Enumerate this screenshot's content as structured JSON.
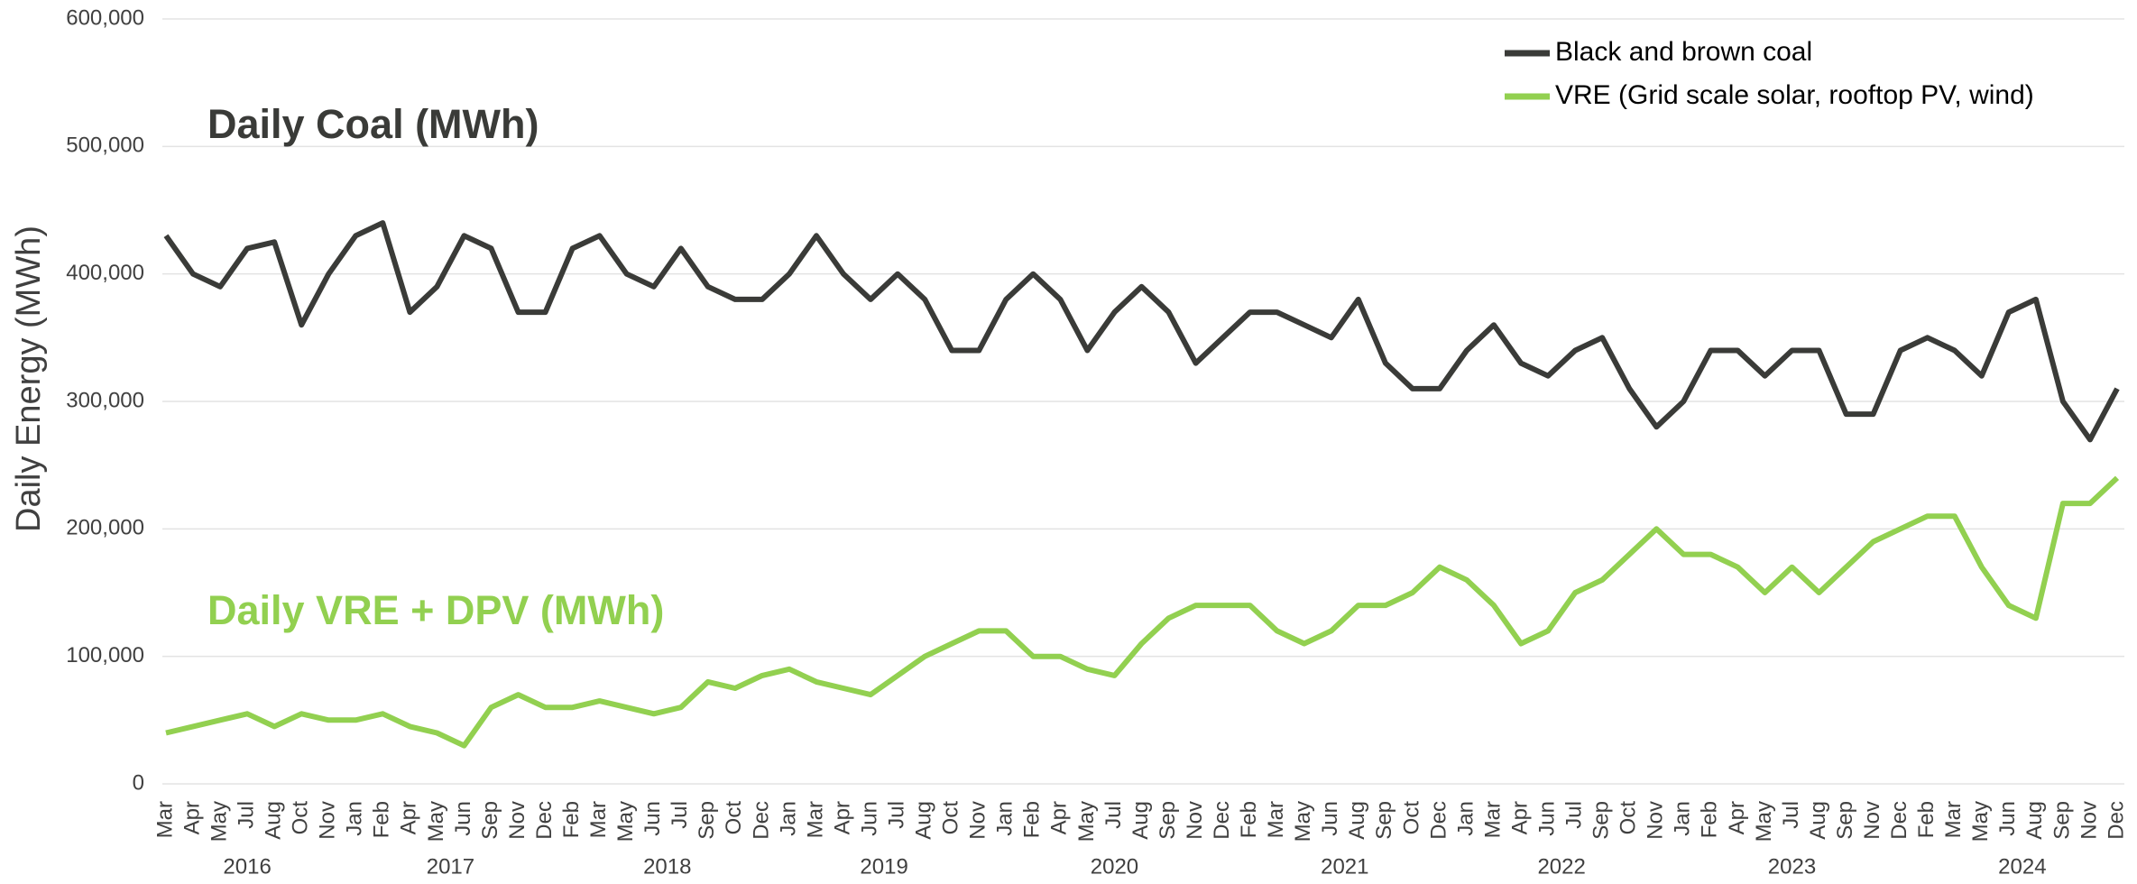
{
  "chart_data": {
    "type": "line",
    "y_label": "Daily Energy (MWh)",
    "annotations": [
      {
        "text": "Daily Coal (MWh)",
        "color": "#3a3b38"
      },
      {
        "text": "Daily VRE + DPV (MWh)",
        "color": "#92d050"
      }
    ],
    "categories": [
      "Mar",
      "Apr",
      "May",
      "Jul",
      "Aug",
      "Oct",
      "Nov",
      "Jan",
      "Feb",
      "Apr",
      "May",
      "Jun",
      "Sep",
      "Nov",
      "Dec",
      "Feb",
      "Mar",
      "May",
      "Jun",
      "Jul",
      "Sep",
      "Oct",
      "Dec",
      "Jan",
      "Mar",
      "Apr",
      "Jun",
      "Jul",
      "Aug",
      "Oct",
      "Nov",
      "Jan",
      "Feb",
      "Apr",
      "May",
      "Jul",
      "Aug",
      "Sep",
      "Nov",
      "Dec",
      "Feb",
      "Mar",
      "May",
      "Jun",
      "Aug",
      "Sep",
      "Oct",
      "Dec",
      "Jan",
      "Mar",
      "Apr",
      "Jun",
      "Jul",
      "Sep",
      "Oct",
      "Nov",
      "Jan",
      "Feb",
      "Apr",
      "May",
      "Jul",
      "Aug",
      "Sep",
      "Nov",
      "Dec",
      "Feb",
      "Mar",
      "May",
      "Jun",
      "Aug",
      "Sep",
      "Nov",
      "Dec"
    ],
    "years": [
      "2016",
      "2017",
      "2018",
      "2019",
      "2020",
      "2021",
      "2022",
      "2023",
      "2024"
    ],
    "series": [
      {
        "name": "Black and brown coal",
        "color": "#3a3b38",
        "values": [
          430000,
          400000,
          390000,
          420000,
          425000,
          360000,
          400000,
          430000,
          440000,
          370000,
          390000,
          430000,
          420000,
          370000,
          370000,
          420000,
          430000,
          400000,
          390000,
          420000,
          390000,
          380000,
          380000,
          400000,
          430000,
          400000,
          380000,
          400000,
          380000,
          340000,
          340000,
          380000,
          400000,
          380000,
          340000,
          370000,
          390000,
          370000,
          330000,
          350000,
          370000,
          370000,
          360000,
          350000,
          380000,
          330000,
          310000,
          310000,
          340000,
          360000,
          330000,
          320000,
          340000,
          350000,
          310000,
          280000,
          300000,
          340000,
          340000,
          320000,
          340000,
          340000,
          290000,
          290000,
          340000,
          350000,
          340000,
          320000,
          370000,
          380000,
          300000,
          270000,
          310000
        ]
      },
      {
        "name": "VRE (Grid scale solar, rooftop PV, wind)",
        "color": "#92d050",
        "values": [
          40000,
          45000,
          50000,
          55000,
          45000,
          55000,
          50000,
          50000,
          55000,
          45000,
          40000,
          30000,
          60000,
          70000,
          60000,
          60000,
          65000,
          60000,
          55000,
          60000,
          80000,
          75000,
          85000,
          90000,
          80000,
          75000,
          70000,
          85000,
          100000,
          110000,
          120000,
          120000,
          100000,
          100000,
          90000,
          85000,
          110000,
          130000,
          140000,
          140000,
          140000,
          120000,
          110000,
          120000,
          140000,
          140000,
          150000,
          170000,
          160000,
          140000,
          110000,
          120000,
          150000,
          160000,
          180000,
          200000,
          180000,
          180000,
          170000,
          150000,
          170000,
          150000,
          170000,
          190000,
          200000,
          210000,
          210000,
          170000,
          140000,
          130000,
          220000,
          220000,
          240000
        ]
      }
    ],
    "ylim": [
      0,
      600000
    ],
    "yticks": [
      0,
      {
        "value": 100000,
        "label": "100,000"
      },
      {
        "value": 200000,
        "label": "200,000"
      },
      {
        "value": 300000,
        "label": "300,000"
      },
      {
        "value": 400000,
        "label": "400,000"
      },
      {
        "value": 500000,
        "label": "500,000"
      },
      {
        "value": 600000,
        "label": "600,000"
      }
    ],
    "grid": true,
    "legend": "top-right"
  }
}
